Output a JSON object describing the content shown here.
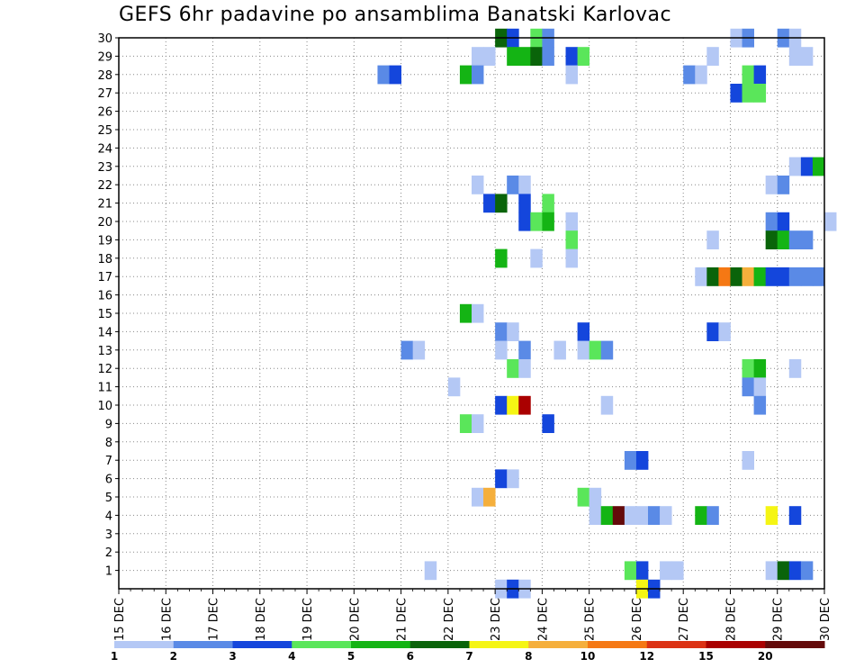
{
  "title": "GEFS 6hr padavine po ansamblima Banatski Karlovac",
  "chart_data": {
    "type": "heatmap",
    "title": "GEFS 6hr padavine po ansamblima Banatski Karlovac",
    "x_tick_labels": [
      "15 DEC",
      "16 DEC",
      "17 DEC",
      "18 DEC",
      "19 DEC",
      "20 DEC",
      "21 DEC",
      "22 DEC",
      "23 DEC",
      "24 DEC",
      "25 DEC",
      "26 DEC",
      "27 DEC",
      "28 DEC",
      "29 DEC",
      "30 DEC"
    ],
    "y_tick_labels": [
      "1",
      "2",
      "3",
      "4",
      "5",
      "6",
      "7",
      "8",
      "9",
      "10",
      "11",
      "12",
      "13",
      "14",
      "15",
      "16",
      "17",
      "18",
      "19",
      "20",
      "21",
      "22",
      "23",
      "24",
      "25",
      "26",
      "27",
      "28",
      "29",
      "30"
    ],
    "x_unit": "6-hour steps from 15 DEC 00z",
    "ylim": [
      0,
      30
    ],
    "grid": true,
    "legend": {
      "position": "bottom",
      "labels": [
        "1",
        "2",
        "3",
        "4",
        "5",
        "6",
        "7",
        "8",
        "10",
        "12",
        "15",
        "20"
      ],
      "colors": [
        "#b4c8f5",
        "#5a8ae6",
        "#1446dc",
        "#5ae65a",
        "#14b414",
        "#0a640a",
        "#f5f514",
        "#f5af3c",
        "#f57814",
        "#dc3214",
        "#aa0000",
        "#640a0a"
      ]
    },
    "cells": [
      {
        "member": 30,
        "step": 32,
        "level": 6
      },
      {
        "member": 30,
        "step": 33,
        "level": 3
      },
      {
        "member": 30,
        "step": 35,
        "level": 4
      },
      {
        "member": 30,
        "step": 36,
        "level": 2
      },
      {
        "member": 30,
        "step": 52,
        "level": 1
      },
      {
        "member": 30,
        "step": 53,
        "level": 2
      },
      {
        "member": 30,
        "step": 56,
        "level": 2
      },
      {
        "member": 30,
        "step": 57,
        "level": 1
      },
      {
        "member": 29,
        "step": 30,
        "level": 1
      },
      {
        "member": 29,
        "step": 31,
        "level": 1
      },
      {
        "member": 29,
        "step": 33,
        "level": 5
      },
      {
        "member": 29,
        "step": 34,
        "level": 5
      },
      {
        "member": 29,
        "step": 35,
        "level": 6
      },
      {
        "member": 29,
        "step": 36,
        "level": 2
      },
      {
        "member": 29,
        "step": 38,
        "level": 3
      },
      {
        "member": 29,
        "step": 39,
        "level": 4
      },
      {
        "member": 29,
        "step": 50,
        "level": 1
      },
      {
        "member": 29,
        "step": 57,
        "level": 1
      },
      {
        "member": 29,
        "step": 58,
        "level": 1
      },
      {
        "member": 28,
        "step": 22,
        "level": 2
      },
      {
        "member": 28,
        "step": 23,
        "level": 3
      },
      {
        "member": 28,
        "step": 29,
        "level": 5
      },
      {
        "member": 28,
        "step": 30,
        "level": 2
      },
      {
        "member": 28,
        "step": 38,
        "level": 1
      },
      {
        "member": 28,
        "step": 48,
        "level": 2
      },
      {
        "member": 28,
        "step": 49,
        "level": 1
      },
      {
        "member": 28,
        "step": 53,
        "level": 4
      },
      {
        "member": 28,
        "step": 54,
        "level": 3
      },
      {
        "member": 27,
        "step": 52,
        "level": 3
      },
      {
        "member": 27,
        "step": 53,
        "level": 4
      },
      {
        "member": 27,
        "step": 54,
        "level": 4
      },
      {
        "member": 23,
        "step": 57,
        "level": 1
      },
      {
        "member": 23,
        "step": 58,
        "level": 3
      },
      {
        "member": 23,
        "step": 59,
        "level": 5
      },
      {
        "member": 22,
        "step": 30,
        "level": 1
      },
      {
        "member": 22,
        "step": 33,
        "level": 2
      },
      {
        "member": 22,
        "step": 34,
        "level": 1
      },
      {
        "member": 22,
        "step": 55,
        "level": 1
      },
      {
        "member": 22,
        "step": 56,
        "level": 2
      },
      {
        "member": 21,
        "step": 31,
        "level": 3
      },
      {
        "member": 21,
        "step": 32,
        "level": 6
      },
      {
        "member": 21,
        "step": 34,
        "level": 3
      },
      {
        "member": 21,
        "step": 36,
        "level": 4
      },
      {
        "member": 20,
        "step": 34,
        "level": 3
      },
      {
        "member": 20,
        "step": 35,
        "level": 4
      },
      {
        "member": 20,
        "step": 36,
        "level": 5
      },
      {
        "member": 20,
        "step": 38,
        "level": 1
      },
      {
        "member": 20,
        "step": 55,
        "level": 2
      },
      {
        "member": 20,
        "step": 56,
        "level": 3
      },
      {
        "member": 20,
        "step": 60,
        "level": 1
      },
      {
        "member": 19,
        "step": 38,
        "level": 4
      },
      {
        "member": 19,
        "step": 50,
        "level": 1
      },
      {
        "member": 19,
        "step": 55,
        "level": 6
      },
      {
        "member": 19,
        "step": 56,
        "level": 5
      },
      {
        "member": 19,
        "step": 57,
        "level": 2
      },
      {
        "member": 19,
        "step": 58,
        "level": 2
      },
      {
        "member": 18,
        "step": 32,
        "level": 5
      },
      {
        "member": 18,
        "step": 35,
        "level": 1
      },
      {
        "member": 18,
        "step": 38,
        "level": 1
      },
      {
        "member": 17,
        "step": 49,
        "level": 1
      },
      {
        "member": 17,
        "step": 50,
        "level": 6
      },
      {
        "member": 17,
        "step": 51,
        "level": 9
      },
      {
        "member": 17,
        "step": 52,
        "level": 6
      },
      {
        "member": 17,
        "step": 53,
        "level": 8
      },
      {
        "member": 17,
        "step": 54,
        "level": 5
      },
      {
        "member": 17,
        "step": 55,
        "level": 3
      },
      {
        "member": 17,
        "step": 56,
        "level": 3
      },
      {
        "member": 17,
        "step": 57,
        "level": 2
      },
      {
        "member": 17,
        "step": 58,
        "level": 2
      },
      {
        "member": 17,
        "step": 59,
        "level": 2
      },
      {
        "member": 15,
        "step": 29,
        "level": 5
      },
      {
        "member": 15,
        "step": 30,
        "level": 1
      },
      {
        "member": 14,
        "step": 32,
        "level": 2
      },
      {
        "member": 14,
        "step": 33,
        "level": 1
      },
      {
        "member": 14,
        "step": 39,
        "level": 3
      },
      {
        "member": 14,
        "step": 50,
        "level": 3
      },
      {
        "member": 14,
        "step": 51,
        "level": 1
      },
      {
        "member": 13,
        "step": 24,
        "level": 2
      },
      {
        "member": 13,
        "step": 25,
        "level": 1
      },
      {
        "member": 13,
        "step": 32,
        "level": 1
      },
      {
        "member": 13,
        "step": 34,
        "level": 2
      },
      {
        "member": 13,
        "step": 37,
        "level": 1
      },
      {
        "member": 13,
        "step": 39,
        "level": 1
      },
      {
        "member": 13,
        "step": 40,
        "level": 4
      },
      {
        "member": 13,
        "step": 41,
        "level": 2
      },
      {
        "member": 12,
        "step": 33,
        "level": 4
      },
      {
        "member": 12,
        "step": 34,
        "level": 1
      },
      {
        "member": 12,
        "step": 53,
        "level": 4
      },
      {
        "member": 12,
        "step": 54,
        "level": 5
      },
      {
        "member": 12,
        "step": 57,
        "level": 1
      },
      {
        "member": 11,
        "step": 28,
        "level": 1
      },
      {
        "member": 11,
        "step": 53,
        "level": 2
      },
      {
        "member": 11,
        "step": 54,
        "level": 1
      },
      {
        "member": 10,
        "step": 32,
        "level": 3
      },
      {
        "member": 10,
        "step": 33,
        "level": 7
      },
      {
        "member": 10,
        "step": 34,
        "level": 11
      },
      {
        "member": 10,
        "step": 41,
        "level": 1
      },
      {
        "member": 10,
        "step": 54,
        "level": 2
      },
      {
        "member": 9,
        "step": 29,
        "level": 4
      },
      {
        "member": 9,
        "step": 30,
        "level": 1
      },
      {
        "member": 9,
        "step": 36,
        "level": 3
      },
      {
        "member": 7,
        "step": 43,
        "level": 2
      },
      {
        "member": 7,
        "step": 44,
        "level": 3
      },
      {
        "member": 7,
        "step": 53,
        "level": 1
      },
      {
        "member": 6,
        "step": 32,
        "level": 3
      },
      {
        "member": 6,
        "step": 33,
        "level": 1
      },
      {
        "member": 5,
        "step": 30,
        "level": 1
      },
      {
        "member": 5,
        "step": 31,
        "level": 8
      },
      {
        "member": 5,
        "step": 39,
        "level": 4
      },
      {
        "member": 5,
        "step": 40,
        "level": 1
      },
      {
        "member": 4,
        "step": 40,
        "level": 1
      },
      {
        "member": 4,
        "step": 41,
        "level": 5
      },
      {
        "member": 4,
        "step": 42,
        "level": 12
      },
      {
        "member": 4,
        "step": 43,
        "level": 1
      },
      {
        "member": 4,
        "step": 44,
        "level": 1
      },
      {
        "member": 4,
        "step": 45,
        "level": 2
      },
      {
        "member": 4,
        "step": 46,
        "level": 1
      },
      {
        "member": 4,
        "step": 49,
        "level": 5
      },
      {
        "member": 4,
        "step": 50,
        "level": 2
      },
      {
        "member": 4,
        "step": 55,
        "level": 7
      },
      {
        "member": 4,
        "step": 57,
        "level": 3
      },
      {
        "member": 1,
        "step": 26,
        "level": 1
      },
      {
        "member": 1,
        "step": 43,
        "level": 4
      },
      {
        "member": 1,
        "step": 44,
        "level": 3
      },
      {
        "member": 1,
        "step": 46,
        "level": 1
      },
      {
        "member": 1,
        "step": 47,
        "level": 1
      },
      {
        "member": 1,
        "step": 55,
        "level": 1
      },
      {
        "member": 1,
        "step": 56,
        "level": 6
      },
      {
        "member": 1,
        "step": 57,
        "level": 3
      },
      {
        "member": 1,
        "step": 58,
        "level": 2
      },
      {
        "member": 0,
        "step": 32,
        "level": 1
      },
      {
        "member": 0,
        "step": 33,
        "level": 3
      },
      {
        "member": 0,
        "step": 34,
        "level": 1
      },
      {
        "member": 0,
        "step": 44,
        "level": 7
      },
      {
        "member": 0,
        "step": 45,
        "level": 3
      }
    ]
  }
}
